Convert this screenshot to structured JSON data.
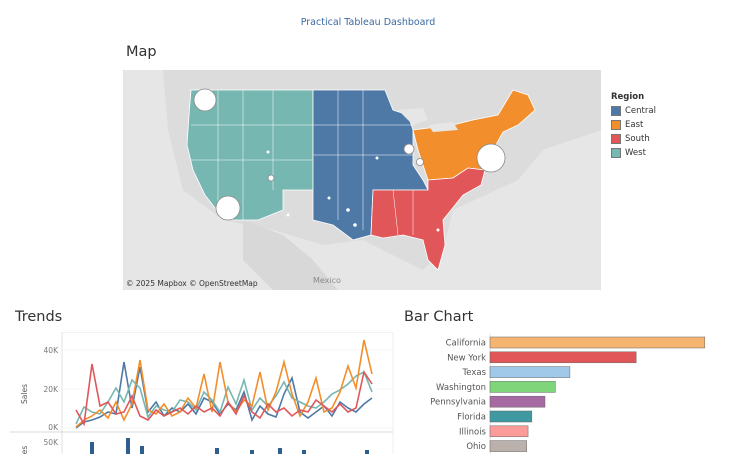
{
  "dashboard": {
    "title": "Practical Tableau Dashboard"
  },
  "map": {
    "title": "Map",
    "attribution": "© 2025 Mapbox © OpenStreetMap",
    "place_label": "Mexico",
    "legend": {
      "title": "Region",
      "items": [
        {
          "label": "Central",
          "color": "#4e79a7"
        },
        {
          "label": "East",
          "color": "#f28e2b"
        },
        {
          "label": "South",
          "color": "#e15759"
        },
        {
          "label": "West",
          "color": "#76b7b2"
        }
      ]
    }
  },
  "trends": {
    "title": "Trends",
    "sales_axis": {
      "label": "Sales",
      "ticks": [
        "40K",
        "20K",
        "0K"
      ]
    },
    "lower_axis": {
      "label": "es",
      "ticks": [
        "50K"
      ]
    }
  },
  "chart_data": {
    "type": "bar",
    "title": "Bar Chart",
    "categories": [
      "California",
      "New York",
      "Texas",
      "Washington",
      "Pennsylvania",
      "Florida",
      "Illinois",
      "Ohio"
    ],
    "values": [
      457000,
      311000,
      170000,
      139000,
      117000,
      89000,
      81000,
      78000
    ],
    "colors": [
      "#f5b470",
      "#e15759",
      "#a0c8e8",
      "#7fd67a",
      "#a66aa2",
      "#3e9aa0",
      "#fb9c9a",
      "#bab0ac"
    ],
    "xlim": [
      0,
      500000
    ]
  }
}
